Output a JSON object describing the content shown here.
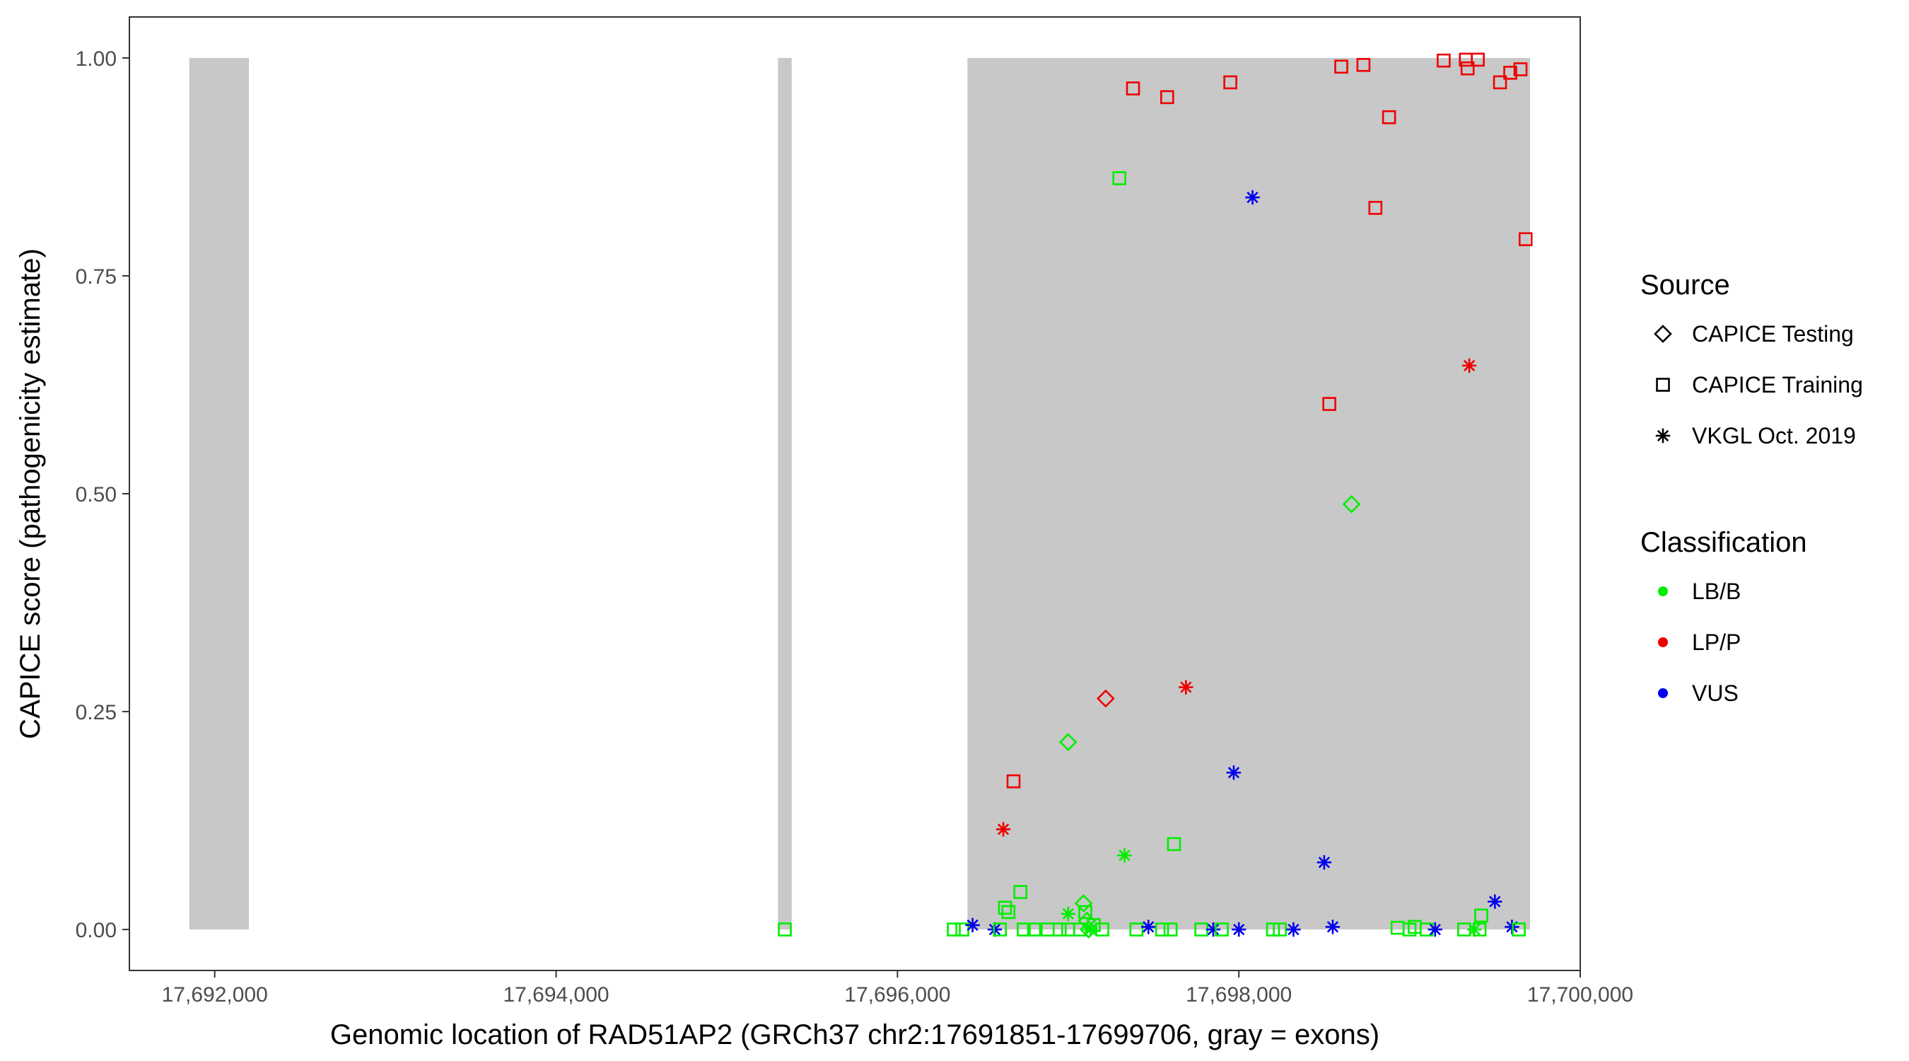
{
  "chart_data": {
    "type": "scatter",
    "xlabel": "Genomic location of RAD51AP2 (GRCh37 chr2:17691851-17699706, gray = exons)",
    "ylabel": "CAPICE score (pathogenicity estimate)",
    "xlim": [
      17691500,
      17700000
    ],
    "ylim": [
      -0.047,
      1.047
    ],
    "x_ticks": [
      17692000,
      17694000,
      17696000,
      17698000,
      17700000
    ],
    "x_tick_labels": [
      "17,692,000",
      "17,694,000",
      "17,696,000",
      "17,698,000",
      "17,700,000"
    ],
    "y_ticks": [
      0,
      0.25,
      0.5,
      0.75,
      1
    ],
    "y_tick_labels": [
      "0.00",
      "0.25",
      "0.50",
      "0.75",
      "1.00"
    ],
    "exons": [
      {
        "start": 17691851,
        "end": 17692200
      },
      {
        "start": 17695300,
        "end": 17695380
      },
      {
        "start": 17696410,
        "end": 17699706
      }
    ],
    "grid": false,
    "legend_placement": "right",
    "legend": {
      "source_title": "Source",
      "source_items": [
        {
          "label": "CAPICE Testing",
          "shape": "diamond"
        },
        {
          "label": "CAPICE Training",
          "shape": "square"
        },
        {
          "label": "VKGL Oct. 2019",
          "shape": "asterisk"
        }
      ],
      "class_title": "Classification",
      "class_items": [
        {
          "label": "LB/B",
          "color": "#00ee00"
        },
        {
          "label": "LP/P",
          "color": "#ee0000"
        },
        {
          "label": "VUS",
          "color": "#0000ee"
        }
      ]
    },
    "points": [
      {
        "x": 17695340,
        "y": 0.0,
        "source": "square",
        "cls": "LB/B"
      },
      {
        "x": 17696330,
        "y": 0.0,
        "source": "square",
        "cls": "LB/B"
      },
      {
        "x": 17696380,
        "y": 0.0,
        "source": "square",
        "cls": "LB/B"
      },
      {
        "x": 17696440,
        "y": 0.005,
        "source": "asterisk",
        "cls": "VUS"
      },
      {
        "x": 17696570,
        "y": 0.0,
        "source": "asterisk",
        "cls": "VUS"
      },
      {
        "x": 17696600,
        "y": 0.0,
        "source": "square",
        "cls": "LB/B"
      },
      {
        "x": 17696630,
        "y": 0.025,
        "source": "square",
        "cls": "LB/B"
      },
      {
        "x": 17696650,
        "y": 0.02,
        "source": "square",
        "cls": "LB/B"
      },
      {
        "x": 17696620,
        "y": 0.115,
        "source": "asterisk",
        "cls": "LP/P"
      },
      {
        "x": 17696680,
        "y": 0.17,
        "source": "square",
        "cls": "LP/P"
      },
      {
        "x": 17696720,
        "y": 0.043,
        "source": "square",
        "cls": "LB/B"
      },
      {
        "x": 17696740,
        "y": 0.0,
        "source": "square",
        "cls": "LB/B"
      },
      {
        "x": 17696800,
        "y": 0.0,
        "source": "square",
        "cls": "LB/B"
      },
      {
        "x": 17696880,
        "y": 0.0,
        "source": "square",
        "cls": "LB/B"
      },
      {
        "x": 17696950,
        "y": 0.0,
        "source": "square",
        "cls": "LB/B"
      },
      {
        "x": 17697000,
        "y": 0.0,
        "source": "square",
        "cls": "LB/B"
      },
      {
        "x": 17697000,
        "y": 0.018,
        "source": "asterisk",
        "cls": "LB/B"
      },
      {
        "x": 17697000,
        "y": 0.215,
        "source": "diamond",
        "cls": "LB/B"
      },
      {
        "x": 17697070,
        "y": 0.0,
        "source": "square",
        "cls": "LB/B"
      },
      {
        "x": 17697090,
        "y": 0.03,
        "source": "diamond",
        "cls": "LB/B"
      },
      {
        "x": 17697100,
        "y": 0.02,
        "source": "square",
        "cls": "LB/B"
      },
      {
        "x": 17697110,
        "y": 0.01,
        "source": "diamond",
        "cls": "LB/B"
      },
      {
        "x": 17697120,
        "y": 0.0,
        "source": "diamond",
        "cls": "LB/B"
      },
      {
        "x": 17697130,
        "y": 0.0,
        "source": "asterisk",
        "cls": "LB/B"
      },
      {
        "x": 17697150,
        "y": 0.005,
        "source": "square",
        "cls": "LB/B"
      },
      {
        "x": 17697200,
        "y": 0.0,
        "source": "square",
        "cls": "LB/B"
      },
      {
        "x": 17697220,
        "y": 0.265,
        "source": "diamond",
        "cls": "LP/P"
      },
      {
        "x": 17697300,
        "y": 0.862,
        "source": "square",
        "cls": "LB/B"
      },
      {
        "x": 17697330,
        "y": 0.085,
        "source": "asterisk",
        "cls": "LB/B"
      },
      {
        "x": 17697380,
        "y": 0.965,
        "source": "square",
        "cls": "LP/P"
      },
      {
        "x": 17697400,
        "y": 0.0,
        "source": "square",
        "cls": "LB/B"
      },
      {
        "x": 17697470,
        "y": 0.003,
        "source": "asterisk",
        "cls": "VUS"
      },
      {
        "x": 17697550,
        "y": 0.0,
        "source": "square",
        "cls": "LB/B"
      },
      {
        "x": 17697580,
        "y": 0.955,
        "source": "square",
        "cls": "LP/P"
      },
      {
        "x": 17697600,
        "y": 0.0,
        "source": "square",
        "cls": "LB/B"
      },
      {
        "x": 17697620,
        "y": 0.098,
        "source": "square",
        "cls": "LB/B"
      },
      {
        "x": 17697690,
        "y": 0.278,
        "source": "asterisk",
        "cls": "LP/P"
      },
      {
        "x": 17697780,
        "y": 0.0,
        "source": "square",
        "cls": "LB/B"
      },
      {
        "x": 17697850,
        "y": 0.0,
        "source": "asterisk",
        "cls": "VUS"
      },
      {
        "x": 17697900,
        "y": 0.0,
        "source": "square",
        "cls": "LB/B"
      },
      {
        "x": 17697950,
        "y": 0.972,
        "source": "square",
        "cls": "LP/P"
      },
      {
        "x": 17697970,
        "y": 0.18,
        "source": "asterisk",
        "cls": "VUS"
      },
      {
        "x": 17698000,
        "y": 0.0,
        "source": "asterisk",
        "cls": "VUS"
      },
      {
        "x": 17698080,
        "y": 0.84,
        "source": "asterisk",
        "cls": "VUS"
      },
      {
        "x": 17698200,
        "y": 0.0,
        "source": "square",
        "cls": "LB/B"
      },
      {
        "x": 17698240,
        "y": 0.0,
        "source": "square",
        "cls": "LB/B"
      },
      {
        "x": 17698320,
        "y": 0.0,
        "source": "asterisk",
        "cls": "VUS"
      },
      {
        "x": 17698500,
        "y": 0.077,
        "source": "asterisk",
        "cls": "VUS"
      },
      {
        "x": 17698530,
        "y": 0.603,
        "source": "square",
        "cls": "LP/P"
      },
      {
        "x": 17698550,
        "y": 0.003,
        "source": "asterisk",
        "cls": "VUS"
      },
      {
        "x": 17698600,
        "y": 0.99,
        "source": "square",
        "cls": "LP/P"
      },
      {
        "x": 17698660,
        "y": 0.488,
        "source": "diamond",
        "cls": "LB/B"
      },
      {
        "x": 17698730,
        "y": 0.992,
        "source": "square",
        "cls": "LP/P"
      },
      {
        "x": 17698800,
        "y": 0.828,
        "source": "square",
        "cls": "LP/P"
      },
      {
        "x": 17698880,
        "y": 0.932,
        "source": "square",
        "cls": "LP/P"
      },
      {
        "x": 17698930,
        "y": 0.002,
        "source": "square",
        "cls": "LB/B"
      },
      {
        "x": 17699000,
        "y": 0.0,
        "source": "square",
        "cls": "LB/B"
      },
      {
        "x": 17699030,
        "y": 0.003,
        "source": "square",
        "cls": "LB/B"
      },
      {
        "x": 17699100,
        "y": 0.0,
        "source": "square",
        "cls": "LB/B"
      },
      {
        "x": 17699150,
        "y": 0.0,
        "source": "asterisk",
        "cls": "VUS"
      },
      {
        "x": 17699200,
        "y": 0.997,
        "source": "square",
        "cls": "LP/P"
      },
      {
        "x": 17699320,
        "y": 0.0,
        "source": "square",
        "cls": "LB/B"
      },
      {
        "x": 17699330,
        "y": 0.998,
        "source": "square",
        "cls": "LP/P"
      },
      {
        "x": 17699340,
        "y": 0.988,
        "source": "square",
        "cls": "LP/P"
      },
      {
        "x": 17699350,
        "y": 0.647,
        "source": "asterisk",
        "cls": "LP/P"
      },
      {
        "x": 17699380,
        "y": 0.0,
        "source": "asterisk",
        "cls": "LB/B"
      },
      {
        "x": 17699400,
        "y": 0.998,
        "source": "square",
        "cls": "LP/P"
      },
      {
        "x": 17699420,
        "y": 0.016,
        "source": "square",
        "cls": "LB/B"
      },
      {
        "x": 17699410,
        "y": 0.0,
        "source": "square",
        "cls": "LB/B"
      },
      {
        "x": 17699500,
        "y": 0.032,
        "source": "asterisk",
        "cls": "VUS"
      },
      {
        "x": 17699530,
        "y": 0.972,
        "source": "square",
        "cls": "LP/P"
      },
      {
        "x": 17699590,
        "y": 0.983,
        "source": "square",
        "cls": "LP/P"
      },
      {
        "x": 17699600,
        "y": 0.003,
        "source": "asterisk",
        "cls": "VUS"
      },
      {
        "x": 17699640,
        "y": 0.0,
        "source": "square",
        "cls": "LB/B"
      },
      {
        "x": 17699650,
        "y": 0.987,
        "source": "square",
        "cls": "LP/P"
      },
      {
        "x": 17699680,
        "y": 0.792,
        "source": "square",
        "cls": "LP/P"
      }
    ]
  }
}
